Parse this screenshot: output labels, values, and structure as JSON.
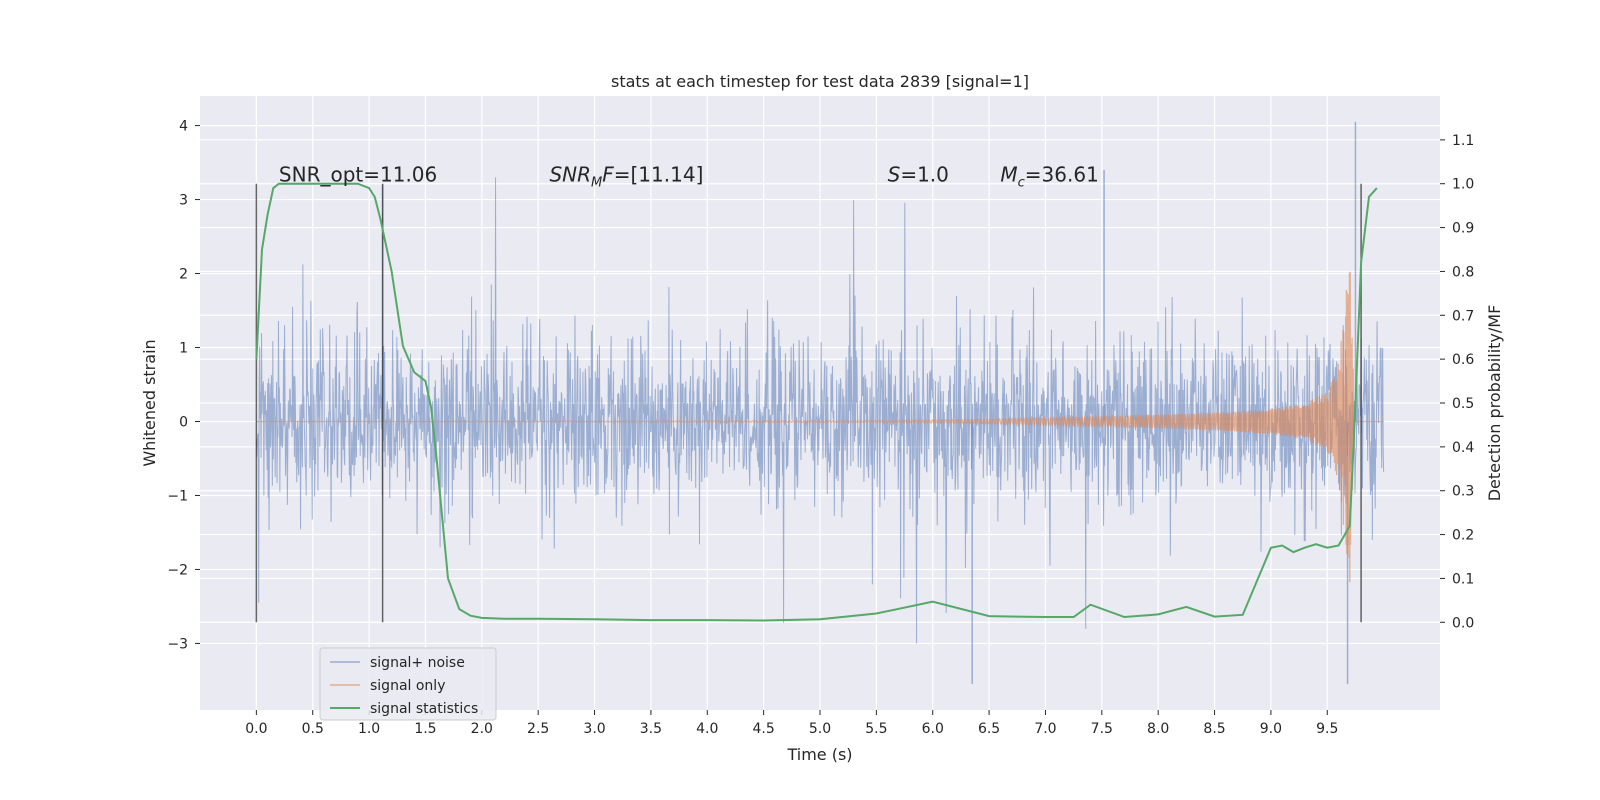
{
  "chart_data": {
    "type": "line",
    "title": "stats at each timestep for test data 2839 [signal=1]",
    "xlabel": "Time (s)",
    "ylabel_left": "Whitened strain",
    "ylabel_right": "Detection probability/MF",
    "xlim": [
      -0.5,
      10.5
    ],
    "ylim_left": [
      -3.9,
      4.4
    ],
    "ylim_right": [
      -0.2,
      1.2
    ],
    "x_ticks": [
      0.0,
      0.5,
      1.0,
      1.5,
      2.0,
      2.5,
      3.0,
      3.5,
      4.0,
      4.5,
      5.0,
      5.5,
      6.0,
      6.5,
      7.0,
      7.5,
      8.0,
      8.5,
      9.0,
      9.5
    ],
    "x_tick_labels": [
      "0.0",
      "0.5",
      "1.0",
      "1.5",
      "2.0",
      "2.5",
      "3.0",
      "3.5",
      "4.0",
      "4.5",
      "5.0",
      "5.5",
      "6.0",
      "6.5",
      "7.0",
      "7.5",
      "8.0",
      "8.5",
      "9.0",
      "9.5"
    ],
    "y_left_ticks": [
      -3,
      -2,
      -1,
      0,
      1,
      2,
      3,
      4
    ],
    "y_left_tick_labels": [
      "−3",
      "−2",
      "−1",
      "0",
      "1",
      "2",
      "3",
      "4"
    ],
    "y_right_ticks": [
      0.0,
      0.1,
      0.2,
      0.3,
      0.4,
      0.5,
      0.6,
      0.7,
      0.8,
      0.9,
      1.0,
      1.1
    ],
    "y_right_tick_labels": [
      "0.0",
      "0.1",
      "0.2",
      "0.3",
      "0.4",
      "0.5",
      "0.6",
      "0.7",
      "0.8",
      "0.9",
      "1.0",
      "1.1"
    ],
    "grid": true,
    "legend_position": "lower-left",
    "series": [
      {
        "name": "signal+ noise",
        "axis": "left",
        "color": "#4c72b0",
        "style": "dense noise band, approx. −1.6 to 1.5 with spikes up to about 4.05 (near t≈9.75) and down to about −3.55 (near t≈6.35)",
        "x_range": [
          0.0,
          10.0
        ]
      },
      {
        "name": "signal only",
        "axis": "left",
        "color": "#dd8452",
        "envelope": {
          "x": [
            0.0,
            5.5,
            6.5,
            7.0,
            7.5,
            8.0,
            8.5,
            9.0,
            9.3,
            9.5,
            9.6,
            9.65,
            9.7,
            9.72,
            9.75,
            10.0
          ],
          "amp": [
            0.0,
            0.01,
            0.03,
            0.05,
            0.07,
            0.09,
            0.12,
            0.17,
            0.25,
            0.4,
            0.8,
            1.5,
            2.2,
            1.2,
            0.0,
            0.0
          ]
        }
      },
      {
        "name": "signal statistics",
        "axis": "right",
        "color": "#55a868",
        "x": [
          0.0,
          0.05,
          0.1,
          0.15,
          0.2,
          0.4,
          0.6,
          0.8,
          0.9,
          1.0,
          1.05,
          1.1,
          1.2,
          1.3,
          1.35,
          1.4,
          1.5,
          1.55,
          1.6,
          1.7,
          1.8,
          1.9,
          2.0,
          2.2,
          2.5,
          3.0,
          3.5,
          4.0,
          4.5,
          5.0,
          5.5,
          6.0,
          6.5,
          7.0,
          7.25,
          7.4,
          7.7,
          8.0,
          8.25,
          8.5,
          8.75,
          9.0,
          9.1,
          9.2,
          9.3,
          9.4,
          9.5,
          9.6,
          9.7,
          9.75,
          9.8,
          9.87,
          9.94
        ],
        "y": [
          0.6,
          0.85,
          0.93,
          0.99,
          1.0,
          1.0,
          1.0,
          1.0,
          1.0,
          0.99,
          0.97,
          0.92,
          0.8,
          0.63,
          0.6,
          0.57,
          0.55,
          0.49,
          0.37,
          0.1,
          0.03,
          0.015,
          0.01,
          0.008,
          0.008,
          0.007,
          0.005,
          0.005,
          0.004,
          0.007,
          0.02,
          0.047,
          0.014,
          0.012,
          0.012,
          0.04,
          0.012,
          0.018,
          0.035,
          0.013,
          0.017,
          0.17,
          0.175,
          0.16,
          0.17,
          0.178,
          0.17,
          0.175,
          0.22,
          0.5,
          0.82,
          0.97,
          0.99
        ]
      }
    ],
    "vertical_lines": [
      0.0,
      1.12,
      9.8
    ],
    "annotations": [
      {
        "name": "snr-opt",
        "label_plain": "SNR_opt=11.06",
        "x": 0.2,
        "y_right": 1.0
      },
      {
        "name": "snr-mf",
        "label_italic": "SNR",
        "label_sub": "M",
        "label_italic2": "F",
        "label_rest": "=[11.14]",
        "x": 2.6,
        "y_right": 1.0
      },
      {
        "name": "s-value",
        "label_italic": "S",
        "label_rest": "=1.0",
        "x": 5.6,
        "y_right": 1.0
      },
      {
        "name": "mc-value",
        "label_italic": "M",
        "label_sub": "c",
        "label_rest": "=36.61",
        "x": 6.6,
        "y_right": 1.0
      }
    ]
  }
}
